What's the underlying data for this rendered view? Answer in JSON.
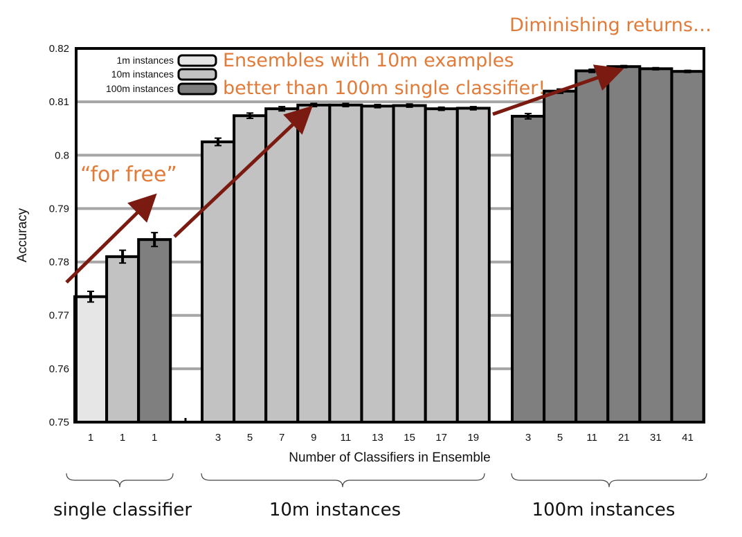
{
  "chart_data": {
    "type": "bar",
    "ylabel": "Accuracy",
    "xlabel": "Number of Classifiers in Ensemble",
    "ylim": [
      0.75,
      0.82
    ],
    "yticks": [
      "0.75",
      "0.76",
      "0.77",
      "0.78",
      "0.79",
      "0.8",
      "0.81",
      "0.82"
    ],
    "grid": "horizontal",
    "legend_position": "top-left",
    "series": [
      {
        "name": "1m instances",
        "color": "#e6e6e6"
      },
      {
        "name": "10m instances",
        "color": "#c2c2c2"
      },
      {
        "name": "100m instances",
        "color": "#7f7f7f"
      }
    ],
    "groups": [
      {
        "label": "single classifier",
        "bars": [
          {
            "x": "1",
            "value": 0.7735,
            "err": 0.001,
            "series": 0
          },
          {
            "x": "1",
            "value": 0.781,
            "err": 0.0012,
            "series": 1
          },
          {
            "x": "1",
            "value": 0.7842,
            "err": 0.0013,
            "series": 2
          }
        ]
      },
      {
        "label": "10m instances",
        "bars": [
          {
            "x": "3",
            "value": 0.8025,
            "err": 0.0007,
            "series": 1
          },
          {
            "x": "5",
            "value": 0.8074,
            "err": 0.0005,
            "series": 1
          },
          {
            "x": "7",
            "value": 0.8087,
            "err": 0.0004,
            "series": 1
          },
          {
            "x": "9",
            "value": 0.8094,
            "err": 0.0003,
            "series": 1
          },
          {
            "x": "11",
            "value": 0.8094,
            "err": 0.0003,
            "series": 1
          },
          {
            "x": "13",
            "value": 0.8092,
            "err": 0.0003,
            "series": 1
          },
          {
            "x": "15",
            "value": 0.8093,
            "err": 0.0003,
            "series": 1
          },
          {
            "x": "17",
            "value": 0.8087,
            "err": 0.0003,
            "series": 1
          },
          {
            "x": "19",
            "value": 0.8088,
            "err": 0.0003,
            "series": 1
          }
        ]
      },
      {
        "label": "100m instances",
        "bars": [
          {
            "x": "3",
            "value": 0.8073,
            "err": 0.0005,
            "series": 2
          },
          {
            "x": "5",
            "value": 0.812,
            "err": 0.0004,
            "series": 2
          },
          {
            "x": "11",
            "value": 0.8158,
            "err": 0.0003,
            "series": 2
          },
          {
            "x": "21",
            "value": 0.8166,
            "err": 0.0002,
            "series": 2
          },
          {
            "x": "31",
            "value": 0.8162,
            "err": 0.0002,
            "series": 2
          },
          {
            "x": "41",
            "value": 0.8157,
            "err": 0.0002,
            "series": 2
          }
        ]
      }
    ],
    "annotations": {
      "top_right": "Diminishing returns…",
      "ensembles_line1": "Ensembles with 10m examples",
      "ensembles_line2": "better than 100m single classifier!",
      "for_free": "“for free”"
    },
    "annotation_color": "#e07b39",
    "arrow_color": "#7b1a10"
  }
}
